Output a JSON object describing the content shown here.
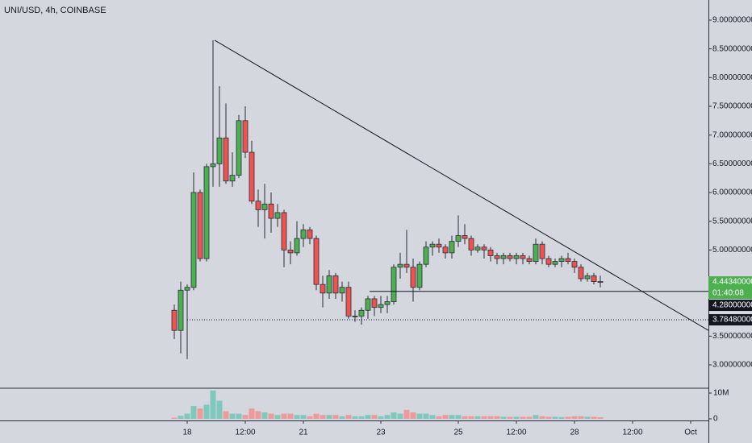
{
  "chart_data": {
    "type": "candlestick",
    "title": "UNI/USD, 4h, COINBASE",
    "open": [
      3.95,
      3.6,
      4.3,
      4.35,
      6.0,
      4.85,
      6.45,
      6.5,
      6.95,
      6.2,
      6.3,
      7.25,
      6.7,
      5.85,
      5.7,
      5.8,
      5.55,
      5.65,
      5.0,
      4.95,
      5.2,
      5.35,
      5.2,
      4.4,
      4.25,
      4.55,
      4.25,
      4.35,
      3.85,
      3.85,
      3.95,
      4.15,
      4.0,
      4.05,
      4.1,
      4.7,
      4.75,
      4.7,
      4.35,
      4.75,
      5.05,
      5.1,
      5.05,
      4.95,
      5.15,
      5.25,
      5.2,
      5.0,
      5.05,
      5.0,
      4.9,
      4.85,
      4.9,
      4.85,
      4.9,
      4.85,
      4.8,
      5.1,
      4.85,
      4.75,
      4.8,
      4.85,
      4.8,
      4.7,
      4.5,
      4.55,
      4.45
    ],
    "high": [
      4.05,
      4.45,
      4.4,
      6.35,
      6.05,
      6.5,
      8.65,
      7.85,
      7.55,
      6.7,
      7.35,
      7.5,
      6.9,
      6.05,
      6.15,
      6.0,
      5.8,
      5.7,
      5.15,
      5.5,
      5.45,
      5.4,
      5.25,
      4.55,
      4.65,
      4.6,
      4.45,
      4.45,
      3.95,
      4.0,
      4.2,
      4.2,
      4.2,
      4.2,
      4.75,
      4.95,
      5.35,
      4.85,
      4.8,
      5.15,
      5.15,
      5.2,
      5.1,
      5.25,
      5.6,
      5.45,
      5.25,
      5.1,
      5.1,
      5.05,
      4.95,
      4.95,
      4.95,
      4.95,
      4.95,
      4.9,
      5.2,
      5.15,
      4.9,
      4.85,
      4.9,
      4.95,
      4.85,
      4.75,
      4.6,
      4.6,
      4.55
    ],
    "low": [
      3.45,
      3.2,
      3.1,
      4.3,
      4.8,
      4.8,
      6.1,
      6.1,
      6.15,
      6.1,
      6.25,
      6.6,
      5.8,
      5.4,
      5.2,
      5.3,
      5.4,
      4.7,
      4.75,
      4.9,
      5.05,
      5.1,
      4.3,
      4.0,
      4.15,
      4.15,
      4.1,
      3.8,
      3.75,
      3.7,
      3.8,
      3.85,
      3.9,
      3.9,
      4.05,
      4.5,
      4.6,
      4.1,
      4.3,
      4.7,
      4.9,
      4.95,
      4.85,
      4.85,
      5.05,
      5.1,
      4.9,
      4.95,
      4.85,
      4.8,
      4.75,
      4.75,
      4.8,
      4.75,
      4.75,
      4.75,
      4.75,
      4.75,
      4.7,
      4.7,
      4.7,
      4.75,
      4.6,
      4.45,
      4.45,
      4.4,
      4.35
    ],
    "close": [
      3.6,
      4.3,
      4.35,
      6.0,
      4.85,
      6.45,
      6.5,
      6.95,
      6.2,
      6.3,
      7.25,
      6.7,
      5.85,
      5.7,
      5.8,
      5.55,
      5.65,
      5.0,
      4.95,
      5.2,
      5.35,
      5.2,
      4.4,
      4.25,
      4.55,
      4.25,
      4.35,
      3.85,
      3.85,
      3.95,
      4.15,
      4.0,
      4.05,
      4.1,
      4.7,
      4.75,
      4.7,
      4.35,
      4.75,
      5.05,
      5.1,
      5.05,
      4.95,
      5.15,
      5.25,
      5.2,
      5.0,
      5.05,
      5.0,
      4.9,
      4.85,
      4.9,
      4.85,
      4.9,
      4.85,
      4.8,
      5.1,
      4.85,
      4.75,
      4.8,
      4.85,
      4.8,
      4.7,
      4.5,
      4.55,
      4.45,
      4.4434
    ],
    "volume": [
      500000,
      1200000,
      2000000,
      5000000,
      4000000,
      5500000,
      11000000,
      7000000,
      3000000,
      2000000,
      2000000,
      1500000,
      4000000,
      3000000,
      2500000,
      2000000,
      1500000,
      2000000,
      2000000,
      1500000,
      1500000,
      1000000,
      2000000,
      1500000,
      1500000,
      1500000,
      1000000,
      1500000,
      1000000,
      1000000,
      1500000,
      1500000,
      1000000,
      1500000,
      2500000,
      2000000,
      3500000,
      2500000,
      2000000,
      2000000,
      1500000,
      1000000,
      1500000,
      1500000,
      1500000,
      1000000,
      1000000,
      1000000,
      1000000,
      1000000,
      1000000,
      800000,
      800000,
      800000,
      800000,
      800000,
      1500000,
      1000000,
      800000,
      800000,
      700000,
      800000,
      1000000,
      1000000,
      800000,
      800000,
      600000
    ],
    "up_color": "#4caf50",
    "down_color": "#ef5350",
    "up_volume_color": "#7fc8bd",
    "down_volume_color": "#ee9a9a",
    "xlim": [
      -27,
      82.75
    ],
    "xticks": [
      {
        "value": 2,
        "label": "18"
      },
      {
        "value": 11,
        "label": "12:00"
      },
      {
        "value": 20,
        "label": "21"
      },
      {
        "value": 32,
        "label": "23"
      },
      {
        "value": 44,
        "label": "25"
      },
      {
        "value": 53,
        "label": "12:00"
      },
      {
        "value": 62,
        "label": "28"
      },
      {
        "value": 71,
        "label": "12:00"
      },
      {
        "value": 80,
        "label": "Oct"
      }
    ],
    "ylim": [
      2.5935,
      9.3505
    ],
    "yticks": [
      {
        "value": 9,
        "label": "9.00000000"
      },
      {
        "value": 8.5,
        "label": "8.50000000"
      },
      {
        "value": 8,
        "label": "8.00000000"
      },
      {
        "value": 7.5,
        "label": "7.50000000"
      },
      {
        "value": 7,
        "label": "7.00000000"
      },
      {
        "value": 6.5,
        "label": "6.50000000"
      },
      {
        "value": 6,
        "label": "6.00000000"
      },
      {
        "value": 5.5,
        "label": "5.50000000"
      },
      {
        "value": 5,
        "label": "5.00000000"
      },
      {
        "value": 3.5,
        "label": "3.50000000"
      },
      {
        "value": 3,
        "label": "3.00000000"
      }
    ],
    "y2lim": [
      -625000,
      11875000
    ],
    "y2ticks": [
      {
        "value": 10000000,
        "label": "10M"
      },
      0
    ],
    "grid": false,
    "last_price": {
      "value": 4.4434,
      "label": "4.44340000",
      "countdown": "01:40:08"
    },
    "hlines": [
      {
        "value": 4.28,
        "label": "4.28000000",
        "x_start": 30.25,
        "style": "solid"
      },
      {
        "value": 3.7848,
        "label": "3.78480000",
        "x_start": 2,
        "style": "dotted"
      }
    ],
    "trendline": {
      "x": [
        6.25,
        82.75
      ],
      "y": [
        8.65,
        3.6
      ]
    }
  }
}
